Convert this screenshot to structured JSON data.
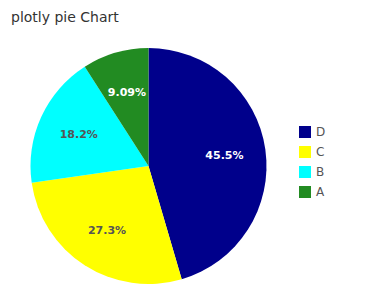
{
  "chart_data": {
    "type": "pie",
    "title": "plotly pie Chart",
    "categories": [
      "D",
      "C",
      "B",
      "A"
    ],
    "values": [
      45.5,
      27.3,
      18.2,
      9.09
    ],
    "value_labels": [
      "45.5%",
      "27.3%",
      "18.2%",
      "9.09%"
    ],
    "colors": [
      "#00008B",
      "#FFFF00",
      "#00FFFF",
      "#228B22"
    ],
    "data_labels": true,
    "legend": "right"
  }
}
